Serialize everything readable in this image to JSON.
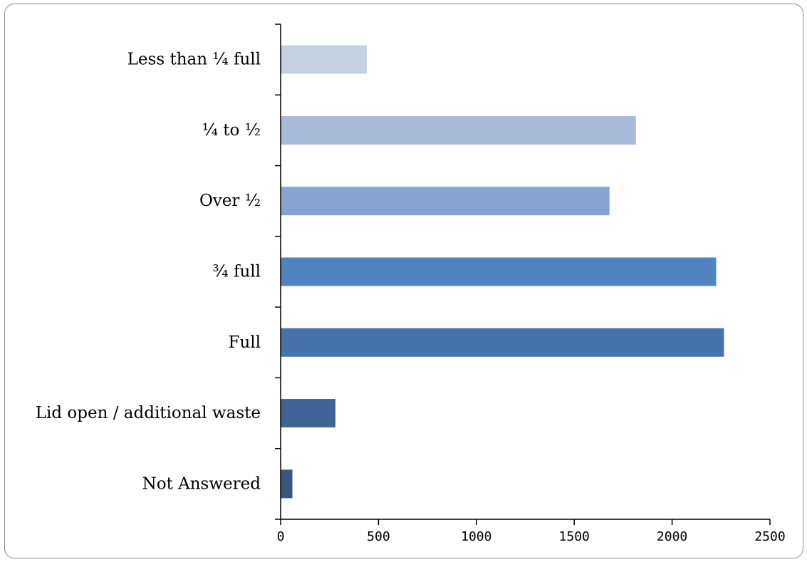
{
  "chart_data": {
    "type": "bar",
    "orientation": "horizontal",
    "categories": [
      "Less than ¼ full",
      "¼ to ½",
      "Over ½",
      "¾ full",
      "Full",
      "Lid open / additional waste",
      "Not Answered"
    ],
    "values": [
      440,
      1815,
      1680,
      2225,
      2265,
      280,
      60
    ],
    "bar_colors": [
      "#c5d0e1",
      "#aabbd9",
      "#87a4d0",
      "#5283c1",
      "#4773ab",
      "#3f6495",
      "#37577f"
    ],
    "xlim": [
      0,
      2500
    ],
    "xticks": [
      0,
      500,
      1000,
      1500,
      2000,
      2500
    ],
    "title": "",
    "xlabel": "",
    "ylabel": "",
    "grid": false,
    "legend": "none"
  }
}
